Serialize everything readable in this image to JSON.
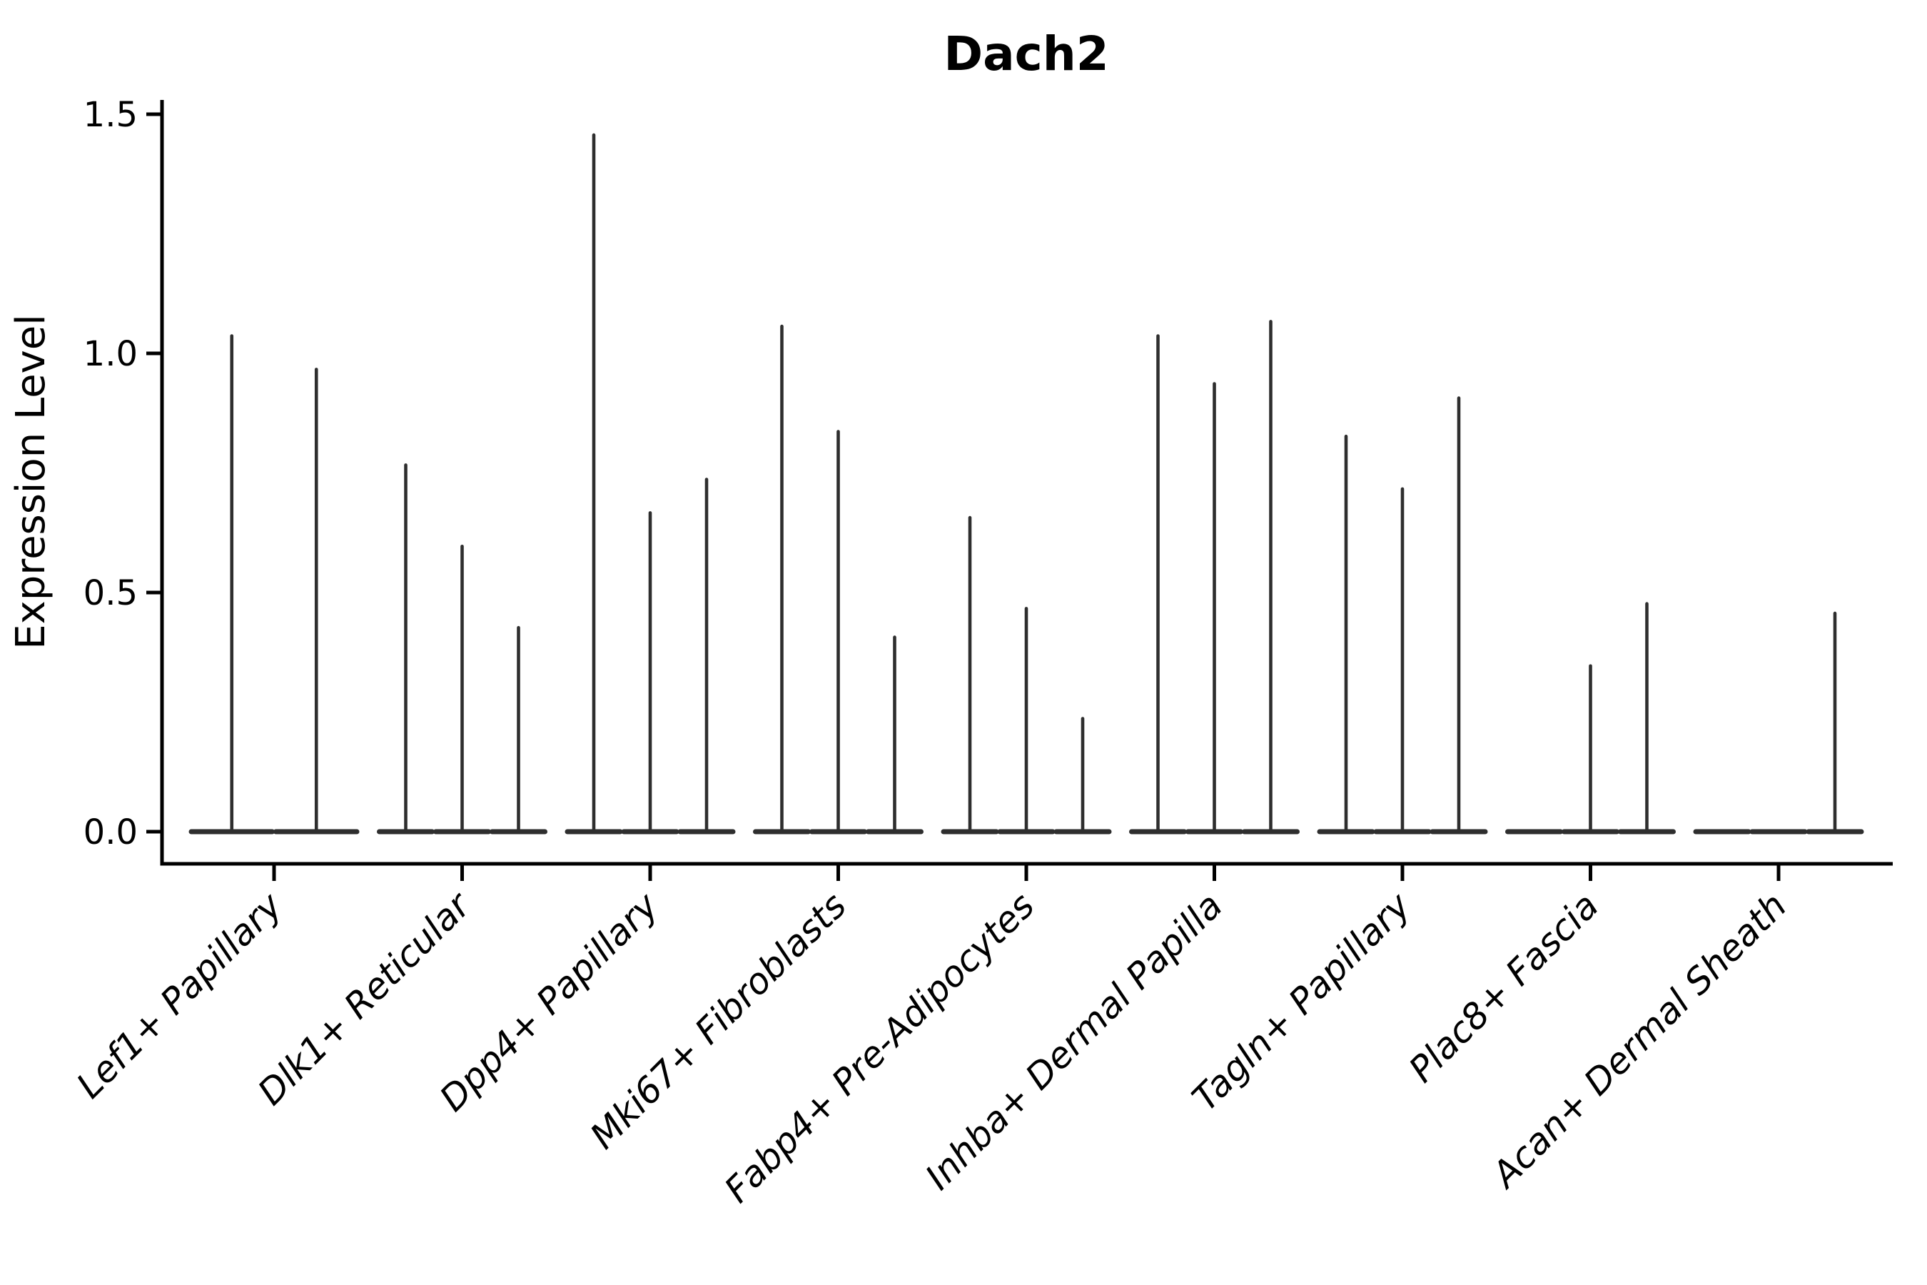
{
  "title": "Dach2",
  "colors": {
    "violin": "#2e2e2e",
    "axis": "#000000",
    "background": "#ffffff"
  },
  "chart_data": {
    "type": "violin",
    "title": "Dach2",
    "xlabel": "",
    "ylabel": "Expression Level",
    "ylim": [
      0,
      1.5
    ],
    "grid": false,
    "legend": "none",
    "x_tick_rotation_deg": 45,
    "y_ticks": [
      {
        "value": 0.0,
        "label": "0.0"
      },
      {
        "value": 0.5,
        "label": "0.5"
      },
      {
        "value": 1.0,
        "label": "1.0"
      },
      {
        "value": 1.5,
        "label": "1.5"
      }
    ],
    "categories": [
      "Lef1+ Papillary",
      "Dlk1+ Reticular",
      "Dpp4+ Papillary",
      "Mki67+ Fibroblasts",
      "Fabp4+ Pre-Adipocytes",
      "Inhba+ Dermal Papilla",
      "Tagln+ Papillary",
      "Plac8+ Fascia",
      "Acan+ Dermal Sheath"
    ],
    "series": [
      {
        "category": "Lef1+ Papillary",
        "violin_peaks": [
          1.04,
          0.97
        ]
      },
      {
        "category": "Dlk1+ Reticular",
        "violin_peaks": [
          0.77,
          0.6,
          0.43
        ]
      },
      {
        "category": "Dpp4+ Papillary",
        "violin_peaks": [
          1.46,
          0.67,
          0.74
        ]
      },
      {
        "category": "Mki67+ Fibroblasts",
        "violin_peaks": [
          1.06,
          0.84,
          0.41
        ]
      },
      {
        "category": "Fabp4+ Pre-Adipocytes",
        "violin_peaks": [
          0.66,
          0.47,
          0.24
        ]
      },
      {
        "category": "Inhba+ Dermal Papilla",
        "violin_peaks": [
          1.04,
          0.94,
          1.07
        ]
      },
      {
        "category": "Tagln+ Papillary",
        "violin_peaks": [
          0.83,
          0.72,
          0.91
        ]
      },
      {
        "category": "Plac8+ Fascia",
        "violin_peaks": [
          0.0,
          0.35,
          0.48
        ]
      },
      {
        "category": "Acan+ Dermal Sheath",
        "violin_peaks": [
          0.0,
          0.0,
          0.46
        ]
      }
    ]
  }
}
